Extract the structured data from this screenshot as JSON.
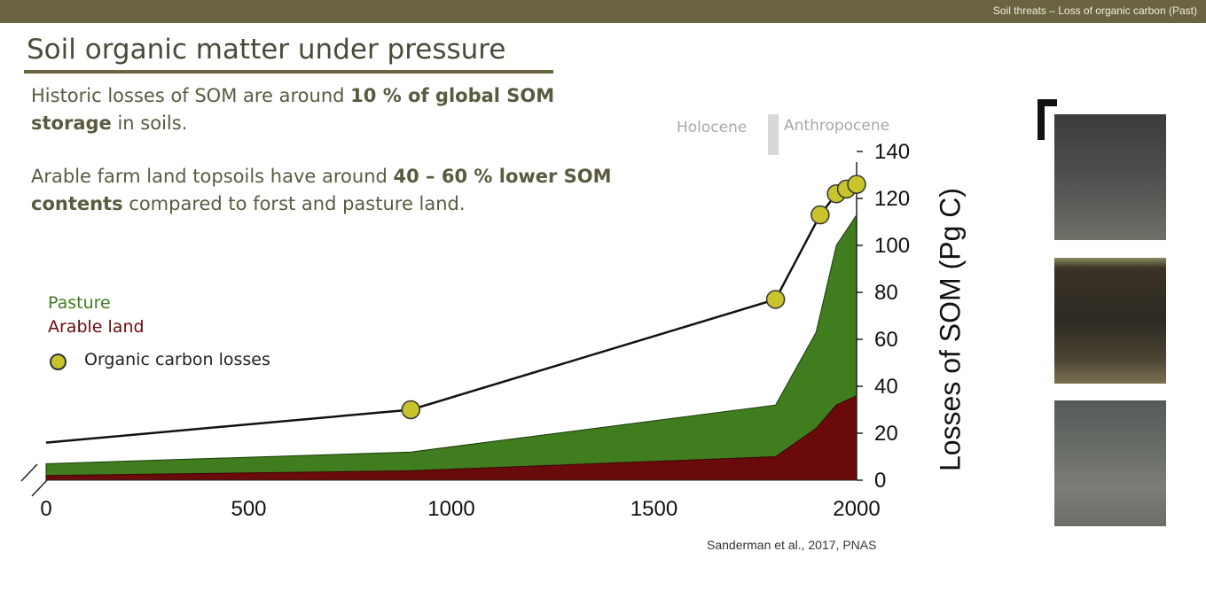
{
  "header": {
    "breadcrumb": "Soil threats – Loss of organic carbon (Past)"
  },
  "slide": {
    "title": "Soil organic matter under pressure",
    "para1": {
      "t1": "Historic losses of SOM are around ",
      "b1": "10 % of global SOM storage",
      "t2": " in soils."
    },
    "para2": {
      "t1": "Arable farm land topsoils have around ",
      "b1": "40 – 60 % lower SOM contents",
      "t2": " compared to forst and pasture land."
    },
    "citation": "Sanderman et al., 2017, PNAS"
  },
  "legend": {
    "pasture": "Pasture",
    "arable": "Arable land",
    "losses": "Organic carbon losses"
  },
  "colors": {
    "pasture": "#3f7d1e",
    "arable": "#6b0a0a",
    "marker": "#c8c42c",
    "header": "#6b6440"
  },
  "photos": [
    {
      "name": "soil-profile-photo-1"
    },
    {
      "name": "soil-profile-photo-2"
    },
    {
      "name": "soil-profile-photo-3"
    }
  ],
  "chart_data": {
    "type": "area",
    "title": "",
    "xlabel": "",
    "ylabel": "Losses of SOM (Pg C)",
    "epochs": [
      "Holocene",
      "Anthropocene"
    ],
    "xlim": [
      0,
      2000
    ],
    "ylim": [
      0,
      140
    ],
    "x_ticks": [
      0,
      500,
      1000,
      1500,
      2000
    ],
    "y_ticks": [
      0,
      20,
      40,
      60,
      80,
      100,
      120,
      140
    ],
    "series": [
      {
        "name": "Pasture",
        "kind": "area-stacked-top",
        "x": [
          0,
          900,
          1800,
          1900,
          1950,
          2000
        ],
        "values": [
          7,
          12,
          32,
          63,
          100,
          113
        ]
      },
      {
        "name": "Arable land",
        "kind": "area",
        "x": [
          0,
          900,
          1800,
          1900,
          1950,
          2000
        ],
        "values": [
          2,
          4,
          10,
          22,
          32,
          36
        ]
      },
      {
        "name": "Organic carbon losses",
        "kind": "line-markers",
        "x": [
          0,
          900,
          1800,
          1910,
          1950,
          1975,
          2000
        ],
        "values": [
          16,
          30,
          77,
          113,
          122,
          124,
          126
        ],
        "markers": [
          false,
          true,
          true,
          true,
          true,
          true,
          true
        ]
      }
    ]
  }
}
